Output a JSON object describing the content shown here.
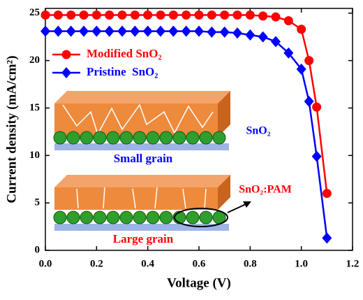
{
  "chart_data": {
    "type": "line",
    "xlabel": "Voltage (V)",
    "ylabel": "Current density (mA/cm²)",
    "xlim": [
      0,
      1.2
    ],
    "ylim": [
      0,
      25.5
    ],
    "xticks": [
      {
        "value": 0,
        "label": "0.0"
      },
      {
        "value": 0.2,
        "label": "0.2"
      },
      {
        "value": 0.4,
        "label": "0.4"
      },
      {
        "value": 0.6,
        "label": "0.6"
      },
      {
        "value": 0.8,
        "label": "0.8"
      },
      {
        "value": 1.0,
        "label": "1.0"
      },
      {
        "value": 1.2,
        "label": "1.2"
      }
    ],
    "yticks": [
      0,
      5,
      10,
      15,
      20,
      25
    ],
    "legend": "upper left",
    "series": [
      {
        "name": "Modified SnO₂",
        "color": "#ff0000",
        "marker": "circle",
        "x": [
          0,
          0.05,
          0.1,
          0.15,
          0.2,
          0.25,
          0.3,
          0.35,
          0.4,
          0.45,
          0.5,
          0.55,
          0.6,
          0.65,
          0.7,
          0.75,
          0.8,
          0.85,
          0.9,
          0.95,
          1.0,
          1.03,
          1.06,
          1.1
        ],
        "values": [
          24.8,
          24.8,
          24.8,
          24.8,
          24.8,
          24.8,
          24.8,
          24.8,
          24.8,
          24.8,
          24.8,
          24.8,
          24.8,
          24.8,
          24.8,
          24.8,
          24.8,
          24.7,
          24.6,
          24.2,
          23.3,
          20.0,
          15.1,
          6.0
        ]
      },
      {
        "name": "Pristine  SnO₂",
        "color": "#0000ff",
        "marker": "diamond",
        "x": [
          0,
          0.05,
          0.1,
          0.15,
          0.2,
          0.25,
          0.3,
          0.35,
          0.4,
          0.45,
          0.5,
          0.55,
          0.6,
          0.65,
          0.7,
          0.75,
          0.8,
          0.85,
          0.9,
          0.95,
          1.0,
          1.03,
          1.06,
          1.1
        ],
        "values": [
          23.1,
          23.1,
          23.1,
          23.1,
          23.1,
          23.1,
          23.1,
          23.1,
          23.1,
          23.1,
          23.1,
          23.1,
          23.1,
          23.0,
          23.0,
          22.9,
          22.7,
          22.5,
          22.0,
          20.8,
          19.1,
          15.7,
          9.9,
          1.3
        ]
      }
    ],
    "annotations": [
      "Small grain",
      "Large grain",
      "SnO₂",
      "SnO₂:PAM"
    ]
  }
}
